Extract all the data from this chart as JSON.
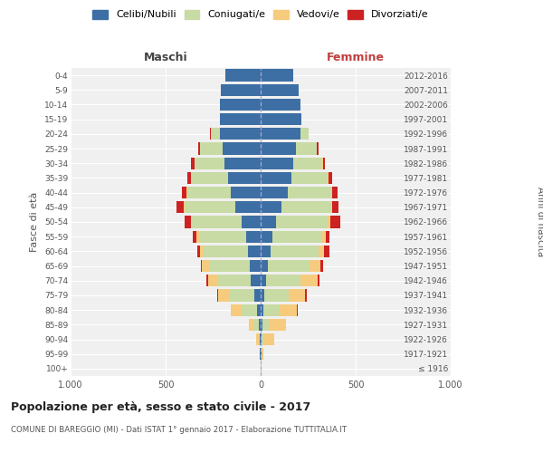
{
  "age_groups": [
    "100+",
    "95-99",
    "90-94",
    "85-89",
    "80-84",
    "75-79",
    "70-74",
    "65-69",
    "60-64",
    "55-59",
    "50-54",
    "45-49",
    "40-44",
    "35-39",
    "30-34",
    "25-29",
    "20-24",
    "15-19",
    "10-14",
    "5-9",
    "0-4"
  ],
  "birth_years": [
    "≤ 1916",
    "1917-1921",
    "1922-1926",
    "1927-1931",
    "1932-1936",
    "1937-1941",
    "1942-1946",
    "1947-1951",
    "1952-1956",
    "1957-1961",
    "1962-1966",
    "1967-1971",
    "1972-1976",
    "1977-1981",
    "1982-1986",
    "1987-1991",
    "1992-1996",
    "1997-2001",
    "2002-2006",
    "2007-2011",
    "2012-2016"
  ],
  "colors": {
    "celibi": "#3d6fa5",
    "coniugati": "#c8dba4",
    "vedovi": "#f7cb7e",
    "divorziati": "#cc2222"
  },
  "maschi": {
    "celibi": [
      2,
      3,
      5,
      10,
      18,
      32,
      52,
      58,
      68,
      78,
      102,
      132,
      158,
      172,
      192,
      202,
      212,
      212,
      212,
      208,
      188
    ],
    "coniugati": [
      0,
      0,
      5,
      28,
      82,
      130,
      172,
      208,
      232,
      248,
      258,
      268,
      228,
      192,
      158,
      118,
      48,
      0,
      0,
      0,
      0
    ],
    "vedovi": [
      0,
      0,
      15,
      22,
      55,
      62,
      52,
      42,
      18,
      12,
      8,
      4,
      4,
      4,
      0,
      0,
      0,
      0,
      0,
      0,
      0
    ],
    "divorziati": [
      0,
      0,
      0,
      0,
      4,
      4,
      8,
      8,
      14,
      18,
      32,
      38,
      22,
      18,
      18,
      8,
      8,
      0,
      0,
      0,
      0
    ]
  },
  "femmine": {
    "celibi": [
      2,
      3,
      5,
      10,
      14,
      18,
      28,
      38,
      52,
      62,
      82,
      108,
      142,
      162,
      172,
      188,
      208,
      212,
      208,
      202,
      172
    ],
    "coniugati": [
      0,
      0,
      10,
      32,
      88,
      128,
      182,
      218,
      252,
      262,
      272,
      262,
      232,
      192,
      152,
      108,
      42,
      0,
      0,
      0,
      0
    ],
    "vedovi": [
      5,
      12,
      55,
      92,
      88,
      88,
      88,
      58,
      28,
      18,
      12,
      8,
      4,
      4,
      4,
      0,
      0,
      0,
      0,
      0,
      0
    ],
    "divorziati": [
      0,
      0,
      0,
      0,
      4,
      8,
      12,
      14,
      32,
      18,
      52,
      32,
      28,
      18,
      12,
      8,
      4,
      0,
      0,
      0,
      0
    ]
  },
  "title": "Popolazione per età, sesso e stato civile - 2017",
  "subtitle": "COMUNE DI BAREGGIO (MI) - Dati ISTAT 1° gennaio 2017 - Elaborazione TUTTITALIA.IT",
  "xlabel_left": "Maschi",
  "xlabel_right": "Femmine",
  "ylabel_left": "Fasce di età",
  "ylabel_right": "Anni di nascita",
  "xlim": 1000,
  "legend_labels": [
    "Celibi/Nubili",
    "Coniugati/e",
    "Vedovi/e",
    "Divorziati/e"
  ],
  "background_color": "#ffffff",
  "plot_bg_color": "#f0f0f0",
  "grid_color": "#ffffff"
}
